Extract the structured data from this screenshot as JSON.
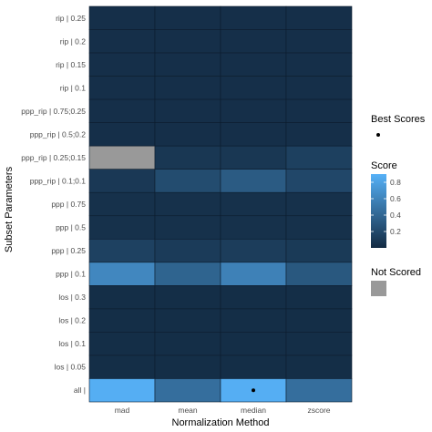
{
  "chart_data": {
    "type": "heatmap",
    "xlabel": "Normalization Method",
    "ylabel": "Subset Parameters",
    "x_categories": [
      "mad",
      "mean",
      "median",
      "zscore"
    ],
    "y_categories": [
      "rip | 0.25",
      "rip | 0.2",
      "rip | 0.15",
      "rip | 0.1",
      "ppp_rip | 0.75;0.25",
      "ppp_rip | 0.5;0.2",
      "ppp_rip | 0.25;0.15",
      "ppp_rip | 0.1;0.1",
      "ppp | 0.75",
      "ppp | 0.5",
      "ppp | 0.25",
      "ppp | 0.1",
      "los | 0.3",
      "los | 0.2",
      "los | 0.1",
      "los | 0.05",
      "all |"
    ],
    "values": [
      [
        0.03,
        0.03,
        0.03,
        0.03
      ],
      [
        0.03,
        0.03,
        0.03,
        0.03
      ],
      [
        0.03,
        0.03,
        0.03,
        0.03
      ],
      [
        0.03,
        0.03,
        0.03,
        0.03
      ],
      [
        0.03,
        0.03,
        0.03,
        0.03
      ],
      [
        0.03,
        0.03,
        0.03,
        0.03
      ],
      [
        null,
        0.08,
        0.08,
        0.14
      ],
      [
        0.09,
        0.22,
        0.32,
        0.19
      ],
      [
        0.04,
        0.04,
        0.04,
        0.04
      ],
      [
        0.04,
        0.04,
        0.04,
        0.04
      ],
      [
        0.15,
        0.11,
        0.12,
        0.1
      ],
      [
        0.62,
        0.38,
        0.58,
        0.3
      ],
      [
        0.02,
        0.02,
        0.02,
        0.02
      ],
      [
        0.02,
        0.02,
        0.02,
        0.02
      ],
      [
        0.02,
        0.02,
        0.02,
        0.02
      ],
      [
        0.02,
        0.02,
        0.02,
        0.02
      ],
      [
        0.88,
        0.45,
        0.88,
        0.45
      ]
    ],
    "best_scores": [
      {
        "x": "median",
        "y": "all |"
      }
    ],
    "legend": {
      "best_title": "Best Scores",
      "score_title": "Score",
      "score_ticks": [
        "0.8",
        "0.6",
        "0.4",
        "0.2"
      ],
      "score_tick_values": [
        0.8,
        0.6,
        0.4,
        0.2
      ],
      "score_range": [
        0.0,
        0.9
      ],
      "notscored_title": "Not Scored"
    },
    "colors": {
      "low": "#132B43",
      "high": "#56B1F7",
      "not_scored": "#999999",
      "cell_border": "#0d1d2e"
    }
  }
}
